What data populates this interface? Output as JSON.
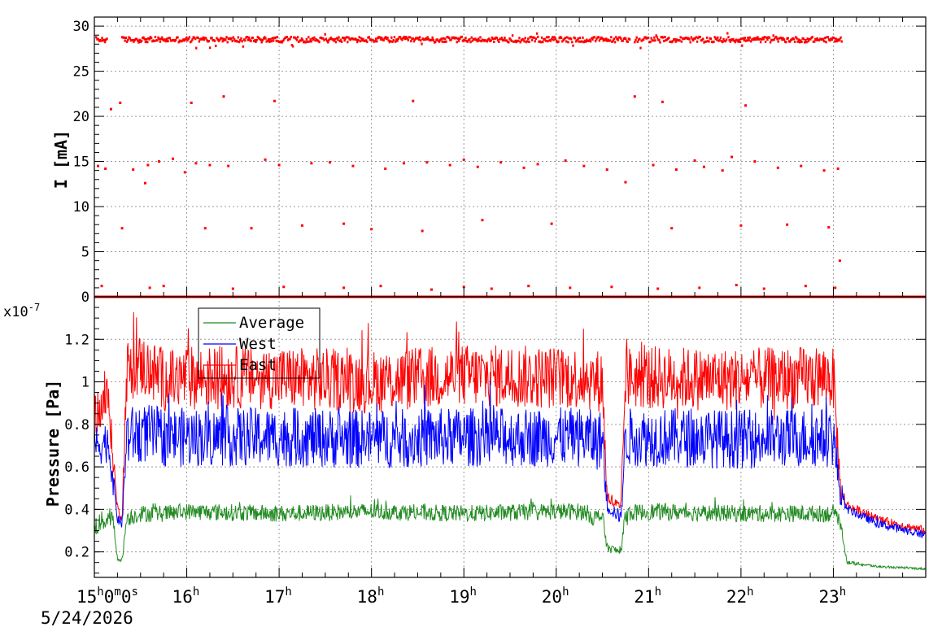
{
  "chart_data": [
    {
      "type": "scatter",
      "ylabel": "I [mA]",
      "ylim": [
        0,
        31
      ],
      "yticks": [
        0,
        5,
        10,
        15,
        20,
        25,
        30
      ],
      "grid": true,
      "color": "#ff0000",
      "series": [
        {
          "band_level": 28.5,
          "band_segments": [
            {
              "x_start": 0.02,
              "x_end": 0.14
            },
            {
              "x_start": 0.3,
              "x_end": 5.8
            },
            {
              "x_start": 5.85,
              "x_end": 8.1
            }
          ],
          "baseline_level": 0,
          "scattered_points": [
            {
              "x": 0.04,
              "y": 14.5
            },
            {
              "x": 0.12,
              "y": 14.2
            },
            {
              "x": 0.3,
              "y": 7.6
            },
            {
              "x": 0.28,
              "y": 21.5
            },
            {
              "x": 0.18,
              "y": 20.8
            },
            {
              "x": 0.42,
              "y": 14.1
            },
            {
              "x": 0.55,
              "y": 12.6
            },
            {
              "x": 0.58,
              "y": 14.6
            },
            {
              "x": 0.7,
              "y": 15.0
            },
            {
              "x": 0.85,
              "y": 15.3
            },
            {
              "x": 0.98,
              "y": 13.8
            },
            {
              "x": 1.05,
              "y": 21.5
            },
            {
              "x": 1.1,
              "y": 14.8
            },
            {
              "x": 1.2,
              "y": 7.6
            },
            {
              "x": 1.25,
              "y": 14.6
            },
            {
              "x": 1.4,
              "y": 22.2
            },
            {
              "x": 1.45,
              "y": 14.5
            },
            {
              "x": 1.7,
              "y": 7.6
            },
            {
              "x": 1.85,
              "y": 15.2
            },
            {
              "x": 1.95,
              "y": 21.7
            },
            {
              "x": 2.0,
              "y": 14.6
            },
            {
              "x": 2.25,
              "y": 7.9
            },
            {
              "x": 2.35,
              "y": 14.8
            },
            {
              "x": 2.55,
              "y": 14.9
            },
            {
              "x": 2.7,
              "y": 8.1
            },
            {
              "x": 2.8,
              "y": 14.5
            },
            {
              "x": 3.0,
              "y": 7.5
            },
            {
              "x": 3.15,
              "y": 14.2
            },
            {
              "x": 3.35,
              "y": 14.8
            },
            {
              "x": 3.45,
              "y": 21.7
            },
            {
              "x": 3.55,
              "y": 7.3
            },
            {
              "x": 3.6,
              "y": 14.9
            },
            {
              "x": 3.85,
              "y": 14.6
            },
            {
              "x": 4.0,
              "y": 15.2
            },
            {
              "x": 4.15,
              "y": 14.4
            },
            {
              "x": 4.2,
              "y": 8.5
            },
            {
              "x": 4.4,
              "y": 14.9
            },
            {
              "x": 4.65,
              "y": 14.3
            },
            {
              "x": 4.8,
              "y": 14.7
            },
            {
              "x": 4.95,
              "y": 8.1
            },
            {
              "x": 5.1,
              "y": 15.1
            },
            {
              "x": 5.3,
              "y": 14.5
            },
            {
              "x": 5.55,
              "y": 14.1
            },
            {
              "x": 5.75,
              "y": 12.7
            },
            {
              "x": 5.85,
              "y": 22.2
            },
            {
              "x": 6.05,
              "y": 14.6
            },
            {
              "x": 6.15,
              "y": 21.6
            },
            {
              "x": 6.25,
              "y": 7.6
            },
            {
              "x": 6.3,
              "y": 14.1
            },
            {
              "x": 6.5,
              "y": 15.1
            },
            {
              "x": 6.6,
              "y": 14.4
            },
            {
              "x": 6.8,
              "y": 14.0
            },
            {
              "x": 6.9,
              "y": 15.5
            },
            {
              "x": 7.0,
              "y": 7.9
            },
            {
              "x": 7.05,
              "y": 21.2
            },
            {
              "x": 7.15,
              "y": 15.0
            },
            {
              "x": 7.4,
              "y": 14.3
            },
            {
              "x": 7.5,
              "y": 8.0
            },
            {
              "x": 7.65,
              "y": 14.5
            },
            {
              "x": 7.9,
              "y": 14.0
            },
            {
              "x": 7.95,
              "y": 7.7
            },
            {
              "x": 8.05,
              "y": 14.2
            },
            {
              "x": 8.07,
              "y": 4.0
            },
            {
              "x": 0.08,
              "y": 1.2
            },
            {
              "x": 0.6,
              "y": 1.0
            },
            {
              "x": 0.75,
              "y": 1.2
            },
            {
              "x": 1.5,
              "y": 0.9
            },
            {
              "x": 2.05,
              "y": 1.1
            },
            {
              "x": 2.7,
              "y": 1.0
            },
            {
              "x": 3.1,
              "y": 1.2
            },
            {
              "x": 3.65,
              "y": 0.8
            },
            {
              "x": 4.0,
              "y": 1.1
            },
            {
              "x": 4.3,
              "y": 0.9
            },
            {
              "x": 4.7,
              "y": 1.2
            },
            {
              "x": 5.15,
              "y": 1.0
            },
            {
              "x": 5.6,
              "y": 1.1
            },
            {
              "x": 6.1,
              "y": 0.9
            },
            {
              "x": 6.55,
              "y": 1.0
            },
            {
              "x": 6.95,
              "y": 1.3
            },
            {
              "x": 7.25,
              "y": 0.9
            },
            {
              "x": 7.7,
              "y": 1.2
            },
            {
              "x": 8.02,
              "y": 1.0
            }
          ]
        }
      ]
    },
    {
      "type": "line",
      "ylabel": "Pressure [Pa]",
      "y_multiplier": "x10",
      "y_multiplier_exponent": "-7",
      "ylim": [
        0.08,
        1.4
      ],
      "yticks": [
        0.2,
        0.4,
        0.6,
        0.8,
        1,
        1.2
      ],
      "ytick_labels": [
        "0.2",
        "0.4",
        "0.6",
        "0.8",
        "1",
        "1.2"
      ],
      "grid": true,
      "legend": {
        "placement": "top-left",
        "entries": [
          "Average",
          "West",
          "East"
        ]
      },
      "series": [
        {
          "name": "Average",
          "color": "#228b22",
          "x": [
            0,
            0.15,
            0.2,
            0.25,
            0.3,
            0.35,
            0.5,
            0.8,
            1,
            2,
            3,
            4,
            5,
            5.3,
            5.35,
            5.4,
            5.5,
            5.55,
            5.7,
            5.75,
            6,
            7,
            8,
            8.08,
            8.15,
            8.5,
            9.0
          ],
          "y": [
            0.32,
            0.36,
            0.35,
            0.17,
            0.16,
            0.36,
            0.38,
            0.38,
            0.39,
            0.38,
            0.39,
            0.38,
            0.39,
            0.39,
            0.38,
            0.36,
            0.37,
            0.22,
            0.2,
            0.38,
            0.39,
            0.38,
            0.38,
            0.33,
            0.15,
            0.13,
            0.12
          ],
          "amplitude": [
            0.05,
            0.05,
            0.05,
            0.01,
            0.01,
            0.04,
            0.04,
            0.04,
            0.04,
            0.04,
            0.04,
            0.04,
            0.04,
            0.04,
            0.04,
            0.04,
            0.04,
            0.02,
            0.02,
            0.04,
            0.04,
            0.04,
            0.04,
            0.03,
            0.01,
            0.005,
            0.005
          ]
        },
        {
          "name": "West",
          "color": "#0000ff",
          "x": [
            0,
            0.15,
            0.25,
            0.3,
            0.35,
            0.5,
            0.8,
            1,
            2,
            3,
            4,
            5,
            5.3,
            5.35,
            5.4,
            5.5,
            5.55,
            5.7,
            5.75,
            6,
            7,
            8,
            8.08,
            8.15,
            8.5,
            9.0
          ],
          "y": [
            0.7,
            0.72,
            0.36,
            0.33,
            0.74,
            0.76,
            0.74,
            0.74,
            0.74,
            0.73,
            0.74,
            0.74,
            0.74,
            0.74,
            0.72,
            0.73,
            0.42,
            0.36,
            0.74,
            0.74,
            0.73,
            0.74,
            0.46,
            0.4,
            0.33,
            0.28
          ],
          "amplitude": [
            0.1,
            0.1,
            0.03,
            0.02,
            0.14,
            0.14,
            0.14,
            0.14,
            0.14,
            0.14,
            0.14,
            0.14,
            0.14,
            0.14,
            0.14,
            0.14,
            0.04,
            0.03,
            0.14,
            0.14,
            0.14,
            0.14,
            0.05,
            0.02,
            0.02,
            0.02
          ]
        },
        {
          "name": "East",
          "color": "#ff0000",
          "x": [
            0,
            0.15,
            0.25,
            0.3,
            0.35,
            0.5,
            0.8,
            1,
            2,
            3,
            4,
            5,
            5.3,
            5.35,
            5.4,
            5.5,
            5.55,
            5.7,
            5.75,
            6,
            7,
            8,
            8.08,
            8.15,
            8.5,
            9.0
          ],
          "y": [
            0.85,
            0.92,
            0.4,
            0.36,
            1.05,
            1.08,
            1.0,
            1.02,
            1.02,
            1.0,
            1.03,
            1.02,
            1.02,
            1.02,
            1.0,
            1.01,
            0.46,
            0.4,
            1.02,
            1.02,
            1.01,
            1.02,
            0.48,
            0.42,
            0.35,
            0.3
          ],
          "amplitude": [
            0.1,
            0.12,
            0.03,
            0.02,
            0.15,
            0.15,
            0.15,
            0.15,
            0.15,
            0.15,
            0.15,
            0.15,
            0.15,
            0.15,
            0.15,
            0.15,
            0.04,
            0.03,
            0.15,
            0.15,
            0.15,
            0.15,
            0.05,
            0.02,
            0.02,
            0.02
          ]
        }
      ]
    }
  ],
  "time_axis": {
    "range_hours": [
      0,
      9.0
    ],
    "first_label": {
      "hours": "15",
      "min": "0",
      "sec": "0"
    },
    "hour_labels": [
      {
        "t": 1,
        "text": "16"
      },
      {
        "t": 2,
        "text": "17"
      },
      {
        "t": 3,
        "text": "18"
      },
      {
        "t": 4,
        "text": "19"
      },
      {
        "t": 5,
        "text": "20"
      },
      {
        "t": 6,
        "text": "21"
      },
      {
        "t": 7,
        "text": "22"
      },
      {
        "t": 8,
        "text": "23"
      }
    ],
    "superscripts": {
      "hour": "h",
      "minute": "m",
      "second": "s"
    },
    "date": "5/24/2026"
  }
}
